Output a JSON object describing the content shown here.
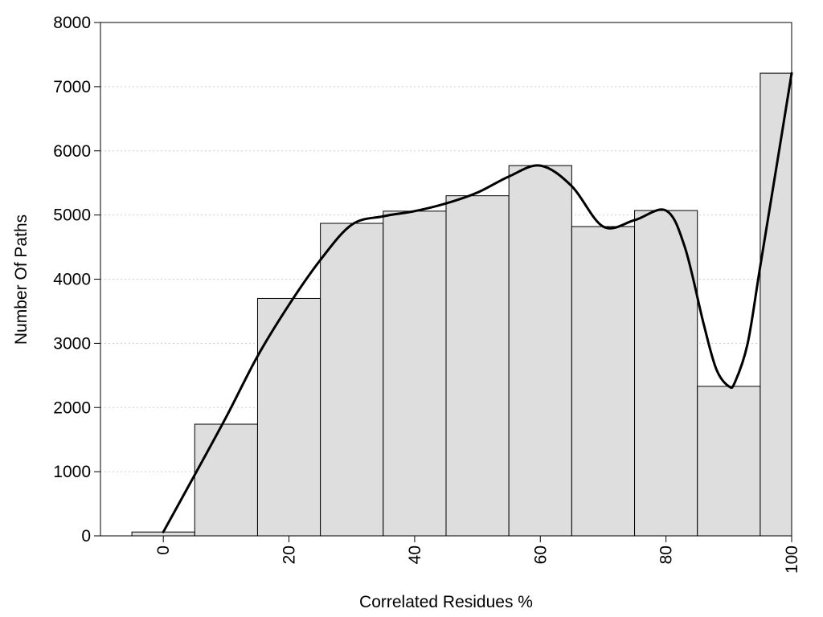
{
  "chart_data": {
    "type": "bar",
    "xlabel": "Correlated Residues %",
    "ylabel": "Number Of Paths",
    "xlim": [
      -10,
      100
    ],
    "ylim": [
      0,
      8000
    ],
    "grid": "horizontal dotted",
    "bin_width": 10,
    "bars": [
      {
        "center": 0,
        "value": 60
      },
      {
        "center": 10,
        "value": 1740
      },
      {
        "center": 20,
        "value": 3700
      },
      {
        "center": 30,
        "value": 4870
      },
      {
        "center": 40,
        "value": 5060
      },
      {
        "center": 50,
        "value": 5300
      },
      {
        "center": 60,
        "value": 5770
      },
      {
        "center": 70,
        "value": 4820
      },
      {
        "center": 80,
        "value": 5070
      },
      {
        "center": 90,
        "value": 2330
      },
      {
        "center": 100,
        "value": 7210
      }
    ],
    "x_ticks": [
      "0",
      "20",
      "40",
      "60",
      "80",
      "100"
    ],
    "y_ticks": [
      "0",
      "1000",
      "2000",
      "3000",
      "4000",
      "5000",
      "6000",
      "7000",
      "8000"
    ],
    "series": [
      {
        "type": "line",
        "x": [
          0,
          5,
          10,
          15,
          20,
          25,
          30,
          35,
          40,
          45,
          50,
          55,
          60,
          65,
          70,
          75,
          80,
          83,
          86,
          88,
          90,
          91,
          93,
          95,
          98,
          100
        ],
        "values": [
          60,
          950,
          1850,
          2800,
          3600,
          4300,
          4850,
          4980,
          5060,
          5180,
          5350,
          5600,
          5770,
          5450,
          4820,
          4920,
          5070,
          4500,
          3300,
          2600,
          2330,
          2400,
          3000,
          4200,
          6000,
          7210
        ]
      }
    ]
  }
}
